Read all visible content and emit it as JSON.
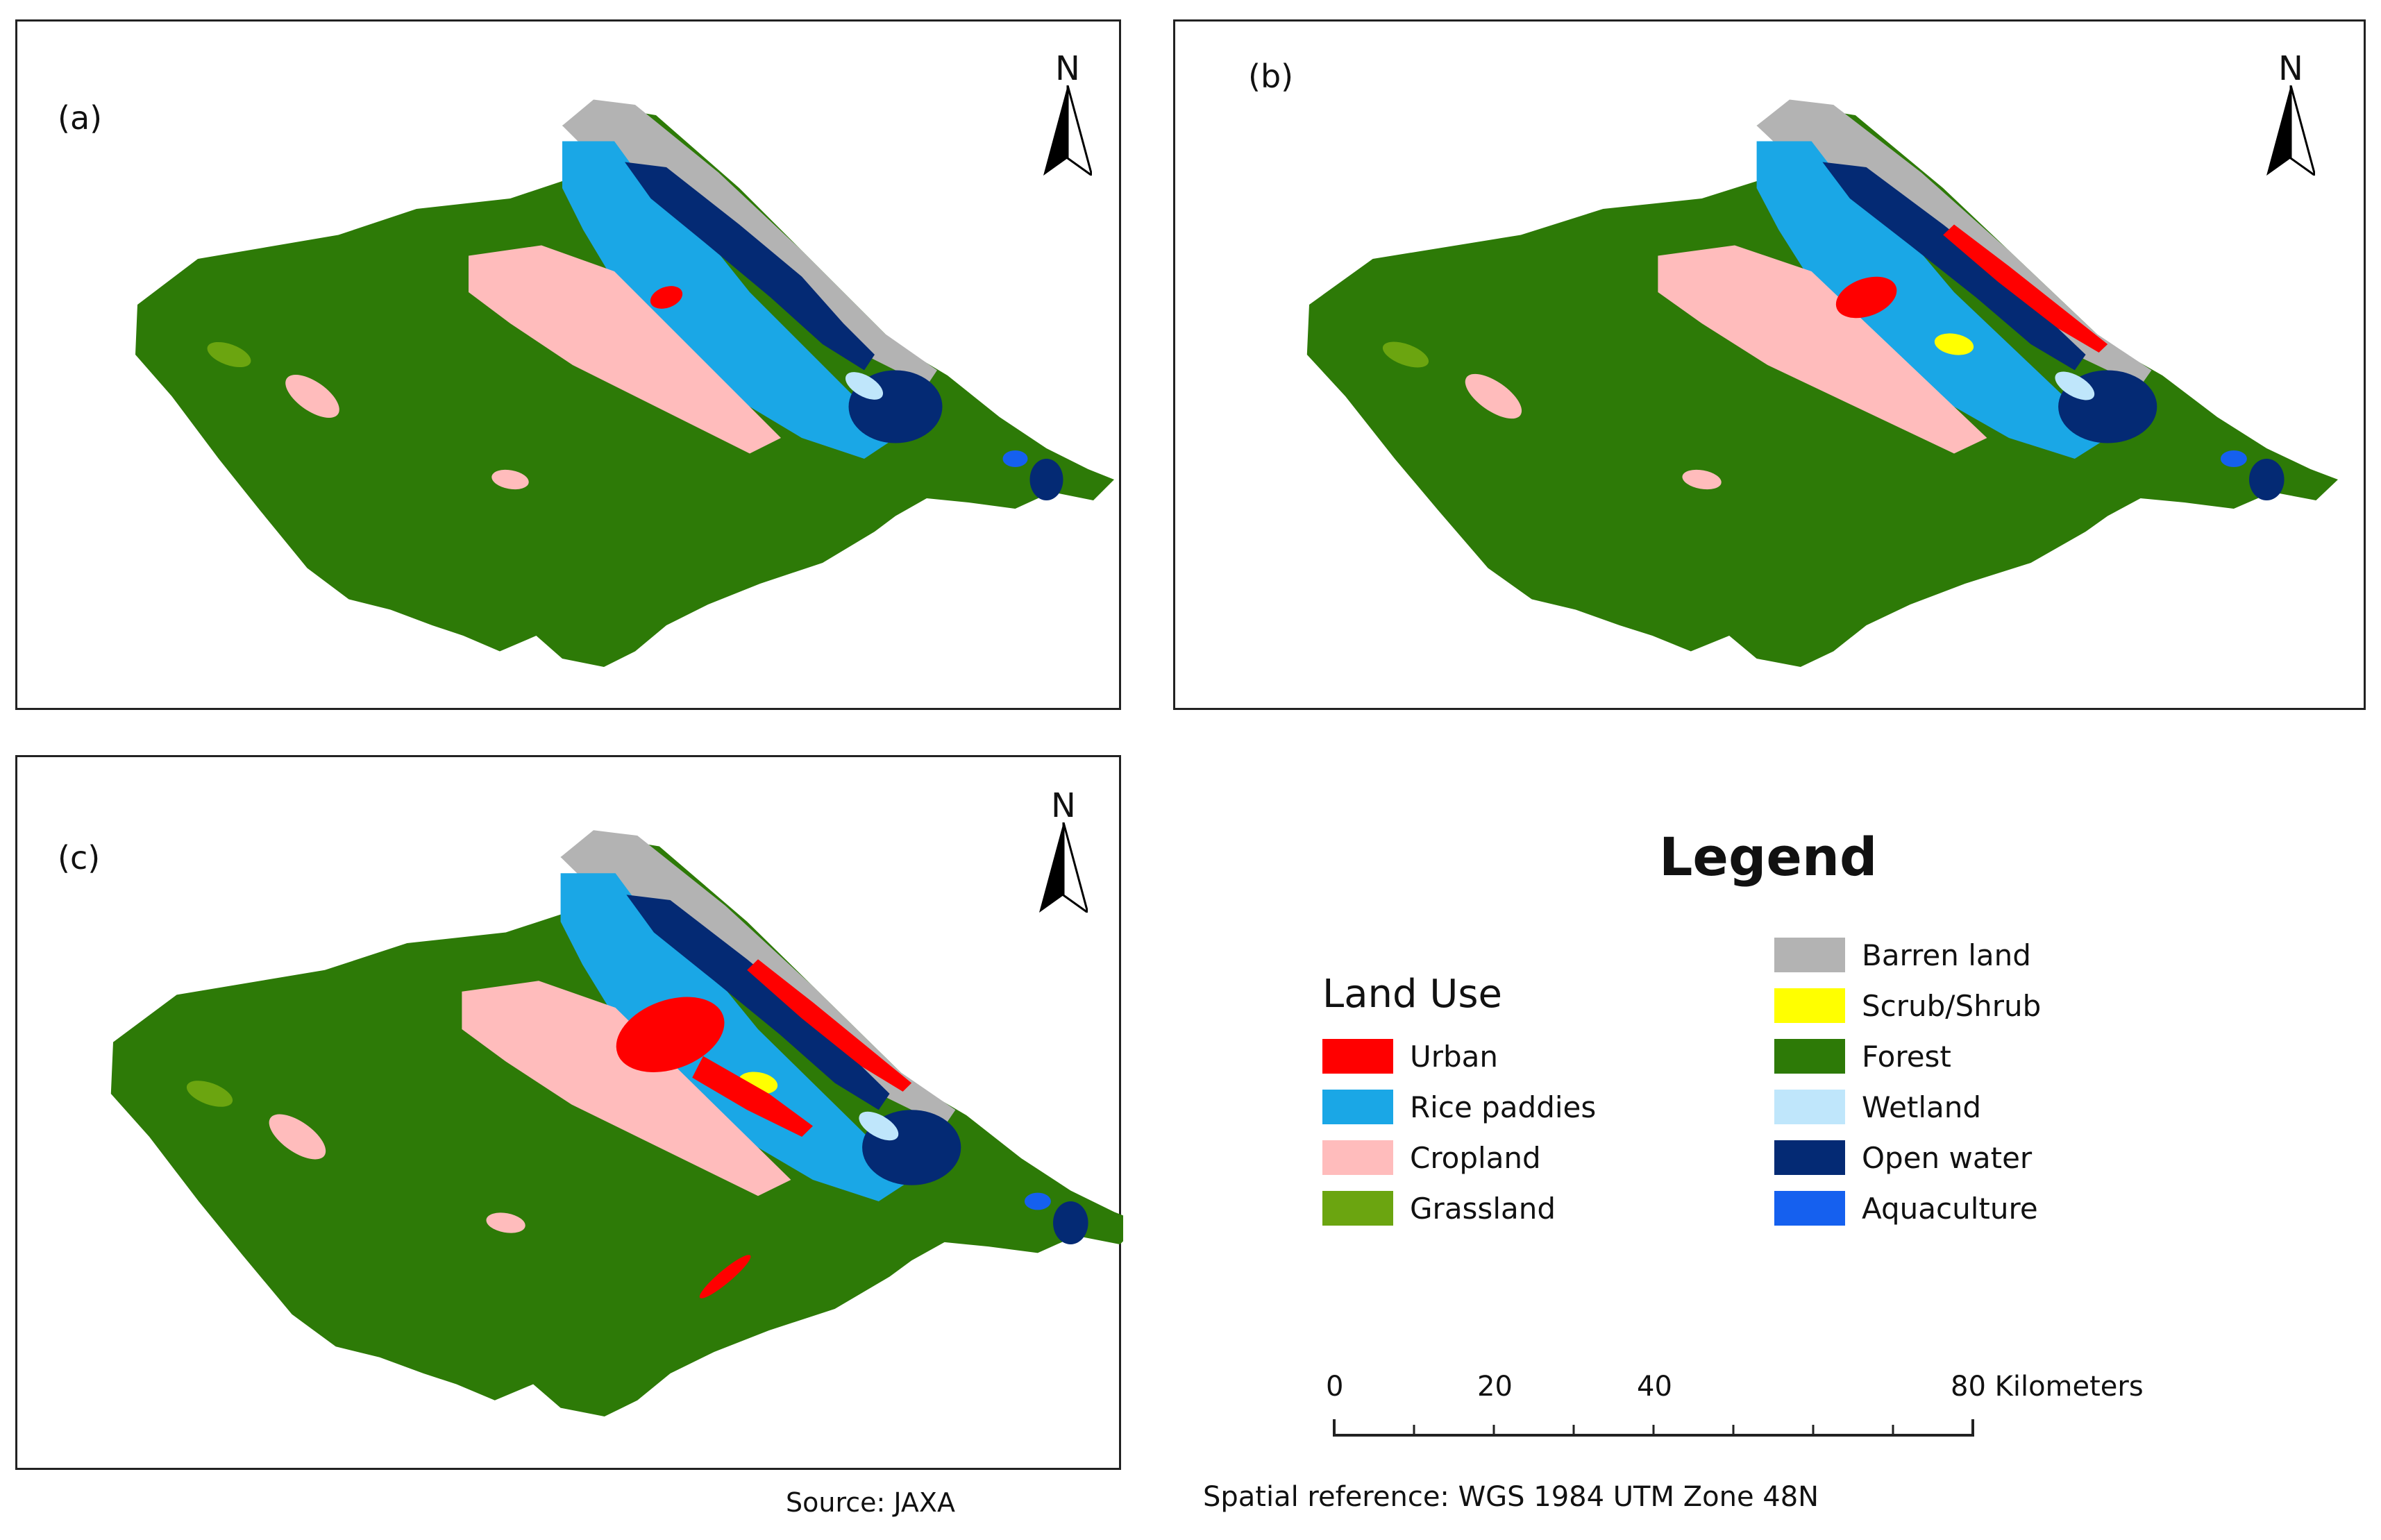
{
  "panels": [
    {
      "label": "(a)",
      "north": "N"
    },
    {
      "label": "(b)",
      "north": "N"
    },
    {
      "label": "(c)",
      "north": "N"
    }
  ],
  "legend": {
    "title": "Legend",
    "group_title": "Land Use",
    "items": [
      {
        "label": "Urban",
        "color": "#ff0000"
      },
      {
        "label": "Rice paddies",
        "color": "#1aa7e6"
      },
      {
        "label": "Cropland",
        "color": "#ffbcbc"
      },
      {
        "label": "Grassland",
        "color": "#6ba510"
      },
      {
        "label": "Barren land",
        "color": "#b3b3b3"
      },
      {
        "label": "Scrub/Shrub",
        "color": "#ffff00"
      },
      {
        "label": "Forest",
        "color": "#2d7a07"
      },
      {
        "label": "Wetland",
        "color": "#bfe6fb"
      },
      {
        "label": "Open water",
        "color": "#042a74"
      },
      {
        "label": "Aquaculture",
        "color": "#1560ef"
      }
    ]
  },
  "scale_bar": {
    "ticks": [
      "0",
      "20",
      "40",
      "80 Kilometers"
    ]
  },
  "source": "Source: JAXA",
  "spatial_reference": "Spatial reference:  WGS 1984 UTM Zone 48N",
  "icons": [
    "north-arrow-icon"
  ]
}
